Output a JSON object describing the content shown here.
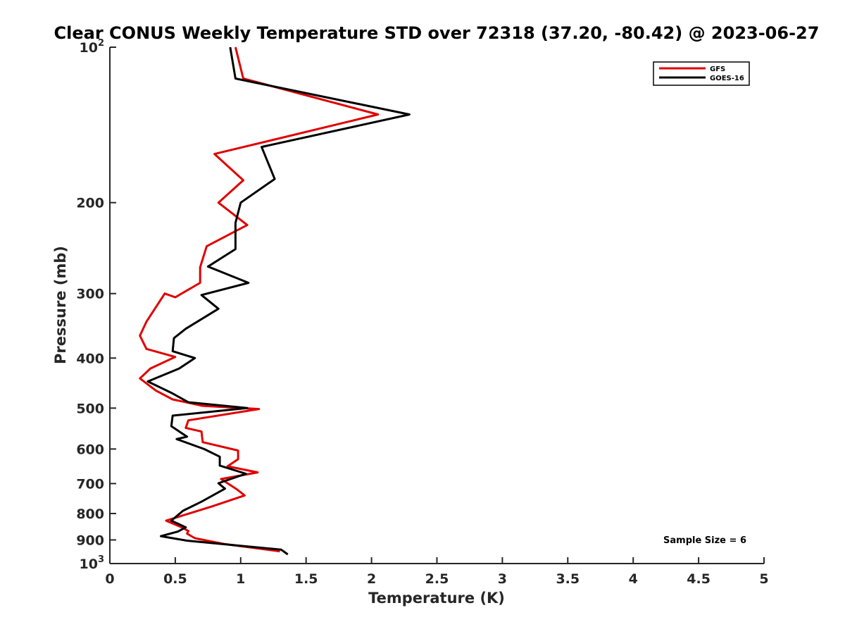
{
  "chart_data": {
    "type": "line",
    "title": "Clear CONUS Weekly Temperature STD over 72318 (37.20, -80.42) @ 2023-06-27",
    "xlabel": "Temperature (K)",
    "ylabel": "Pressure (mb)",
    "xlim": [
      0,
      5
    ],
    "ylim": [
      100,
      1000
    ],
    "y_scale": "log",
    "y_reversed": true,
    "xticks": [
      0,
      0.5,
      1,
      1.5,
      2,
      2.5,
      3,
      3.5,
      4,
      4.5,
      5
    ],
    "xtick_labels": [
      "0",
      "0.5",
      "1",
      "1.5",
      "2",
      "2.5",
      "3",
      "3.5",
      "4",
      "4.5",
      "5"
    ],
    "yticks": [
      100,
      200,
      300,
      400,
      500,
      600,
      700,
      800,
      900,
      1000
    ],
    "ytick_labels": [
      "10²",
      "200",
      "300",
      "400",
      "500",
      "600",
      "700",
      "800",
      "900",
      "10³"
    ],
    "grid": false,
    "legend_position": "top-right",
    "series": [
      {
        "name": "GFS",
        "color": "#e00000",
        "points": [
          [
            0.96,
            100
          ],
          [
            1.02,
            115
          ],
          [
            2.05,
            135
          ],
          [
            0.8,
            161
          ],
          [
            1.02,
            181
          ],
          [
            0.83,
            200
          ],
          [
            1.05,
            221
          ],
          [
            0.74,
            243
          ],
          [
            0.69,
            267
          ],
          [
            0.69,
            286
          ],
          [
            0.5,
            305
          ],
          [
            0.42,
            300
          ],
          [
            0.28,
            340
          ],
          [
            0.23,
            362
          ],
          [
            0.28,
            384
          ],
          [
            0.5,
            398
          ],
          [
            0.31,
            419
          ],
          [
            0.23,
            438
          ],
          [
            0.35,
            462
          ],
          [
            0.48,
            481
          ],
          [
            0.71,
            495
          ],
          [
            1.14,
            502
          ],
          [
            0.6,
            528
          ],
          [
            0.58,
            546
          ],
          [
            0.7,
            555
          ],
          [
            0.71,
            582
          ],
          [
            0.98,
            604
          ],
          [
            0.98,
            628
          ],
          [
            0.9,
            648
          ],
          [
            1.13,
            666
          ],
          [
            0.85,
            686
          ],
          [
            0.97,
            718
          ],
          [
            1.03,
            738
          ],
          [
            0.78,
            775
          ],
          [
            0.43,
            826
          ],
          [
            0.55,
            851
          ],
          [
            0.6,
            865
          ],
          [
            0.59,
            875
          ],
          [
            0.65,
            893
          ],
          [
            0.87,
            916
          ],
          [
            1.3,
            947
          ]
        ]
      },
      {
        "name": "GOES-16",
        "color": "#000000",
        "points": [
          [
            0.92,
            100
          ],
          [
            0.96,
            115
          ],
          [
            2.29,
            135
          ],
          [
            1.16,
            156
          ],
          [
            1.26,
            180
          ],
          [
            1.0,
            200
          ],
          [
            0.96,
            219
          ],
          [
            0.96,
            246
          ],
          [
            0.75,
            266
          ],
          [
            1.06,
            286
          ],
          [
            0.7,
            302
          ],
          [
            0.83,
            321
          ],
          [
            0.58,
            351
          ],
          [
            0.49,
            366
          ],
          [
            0.48,
            388
          ],
          [
            0.65,
            400
          ],
          [
            0.53,
            419
          ],
          [
            0.29,
            444
          ],
          [
            0.47,
            467
          ],
          [
            0.6,
            487
          ],
          [
            1.05,
            500
          ],
          [
            0.48,
            517
          ],
          [
            0.47,
            542
          ],
          [
            0.59,
            568
          ],
          [
            0.51,
            574
          ],
          [
            0.72,
            600
          ],
          [
            0.84,
            621
          ],
          [
            0.84,
            646
          ],
          [
            1.04,
            670
          ],
          [
            0.83,
            699
          ],
          [
            0.88,
            716
          ],
          [
            0.7,
            759
          ],
          [
            0.56,
            790
          ],
          [
            0.47,
            826
          ],
          [
            0.58,
            851
          ],
          [
            0.52,
            867
          ],
          [
            0.39,
            885
          ],
          [
            0.59,
            903
          ],
          [
            1.31,
            940
          ],
          [
            1.36,
            960
          ]
        ]
      }
    ],
    "annotation": "Sample Size = 6"
  }
}
